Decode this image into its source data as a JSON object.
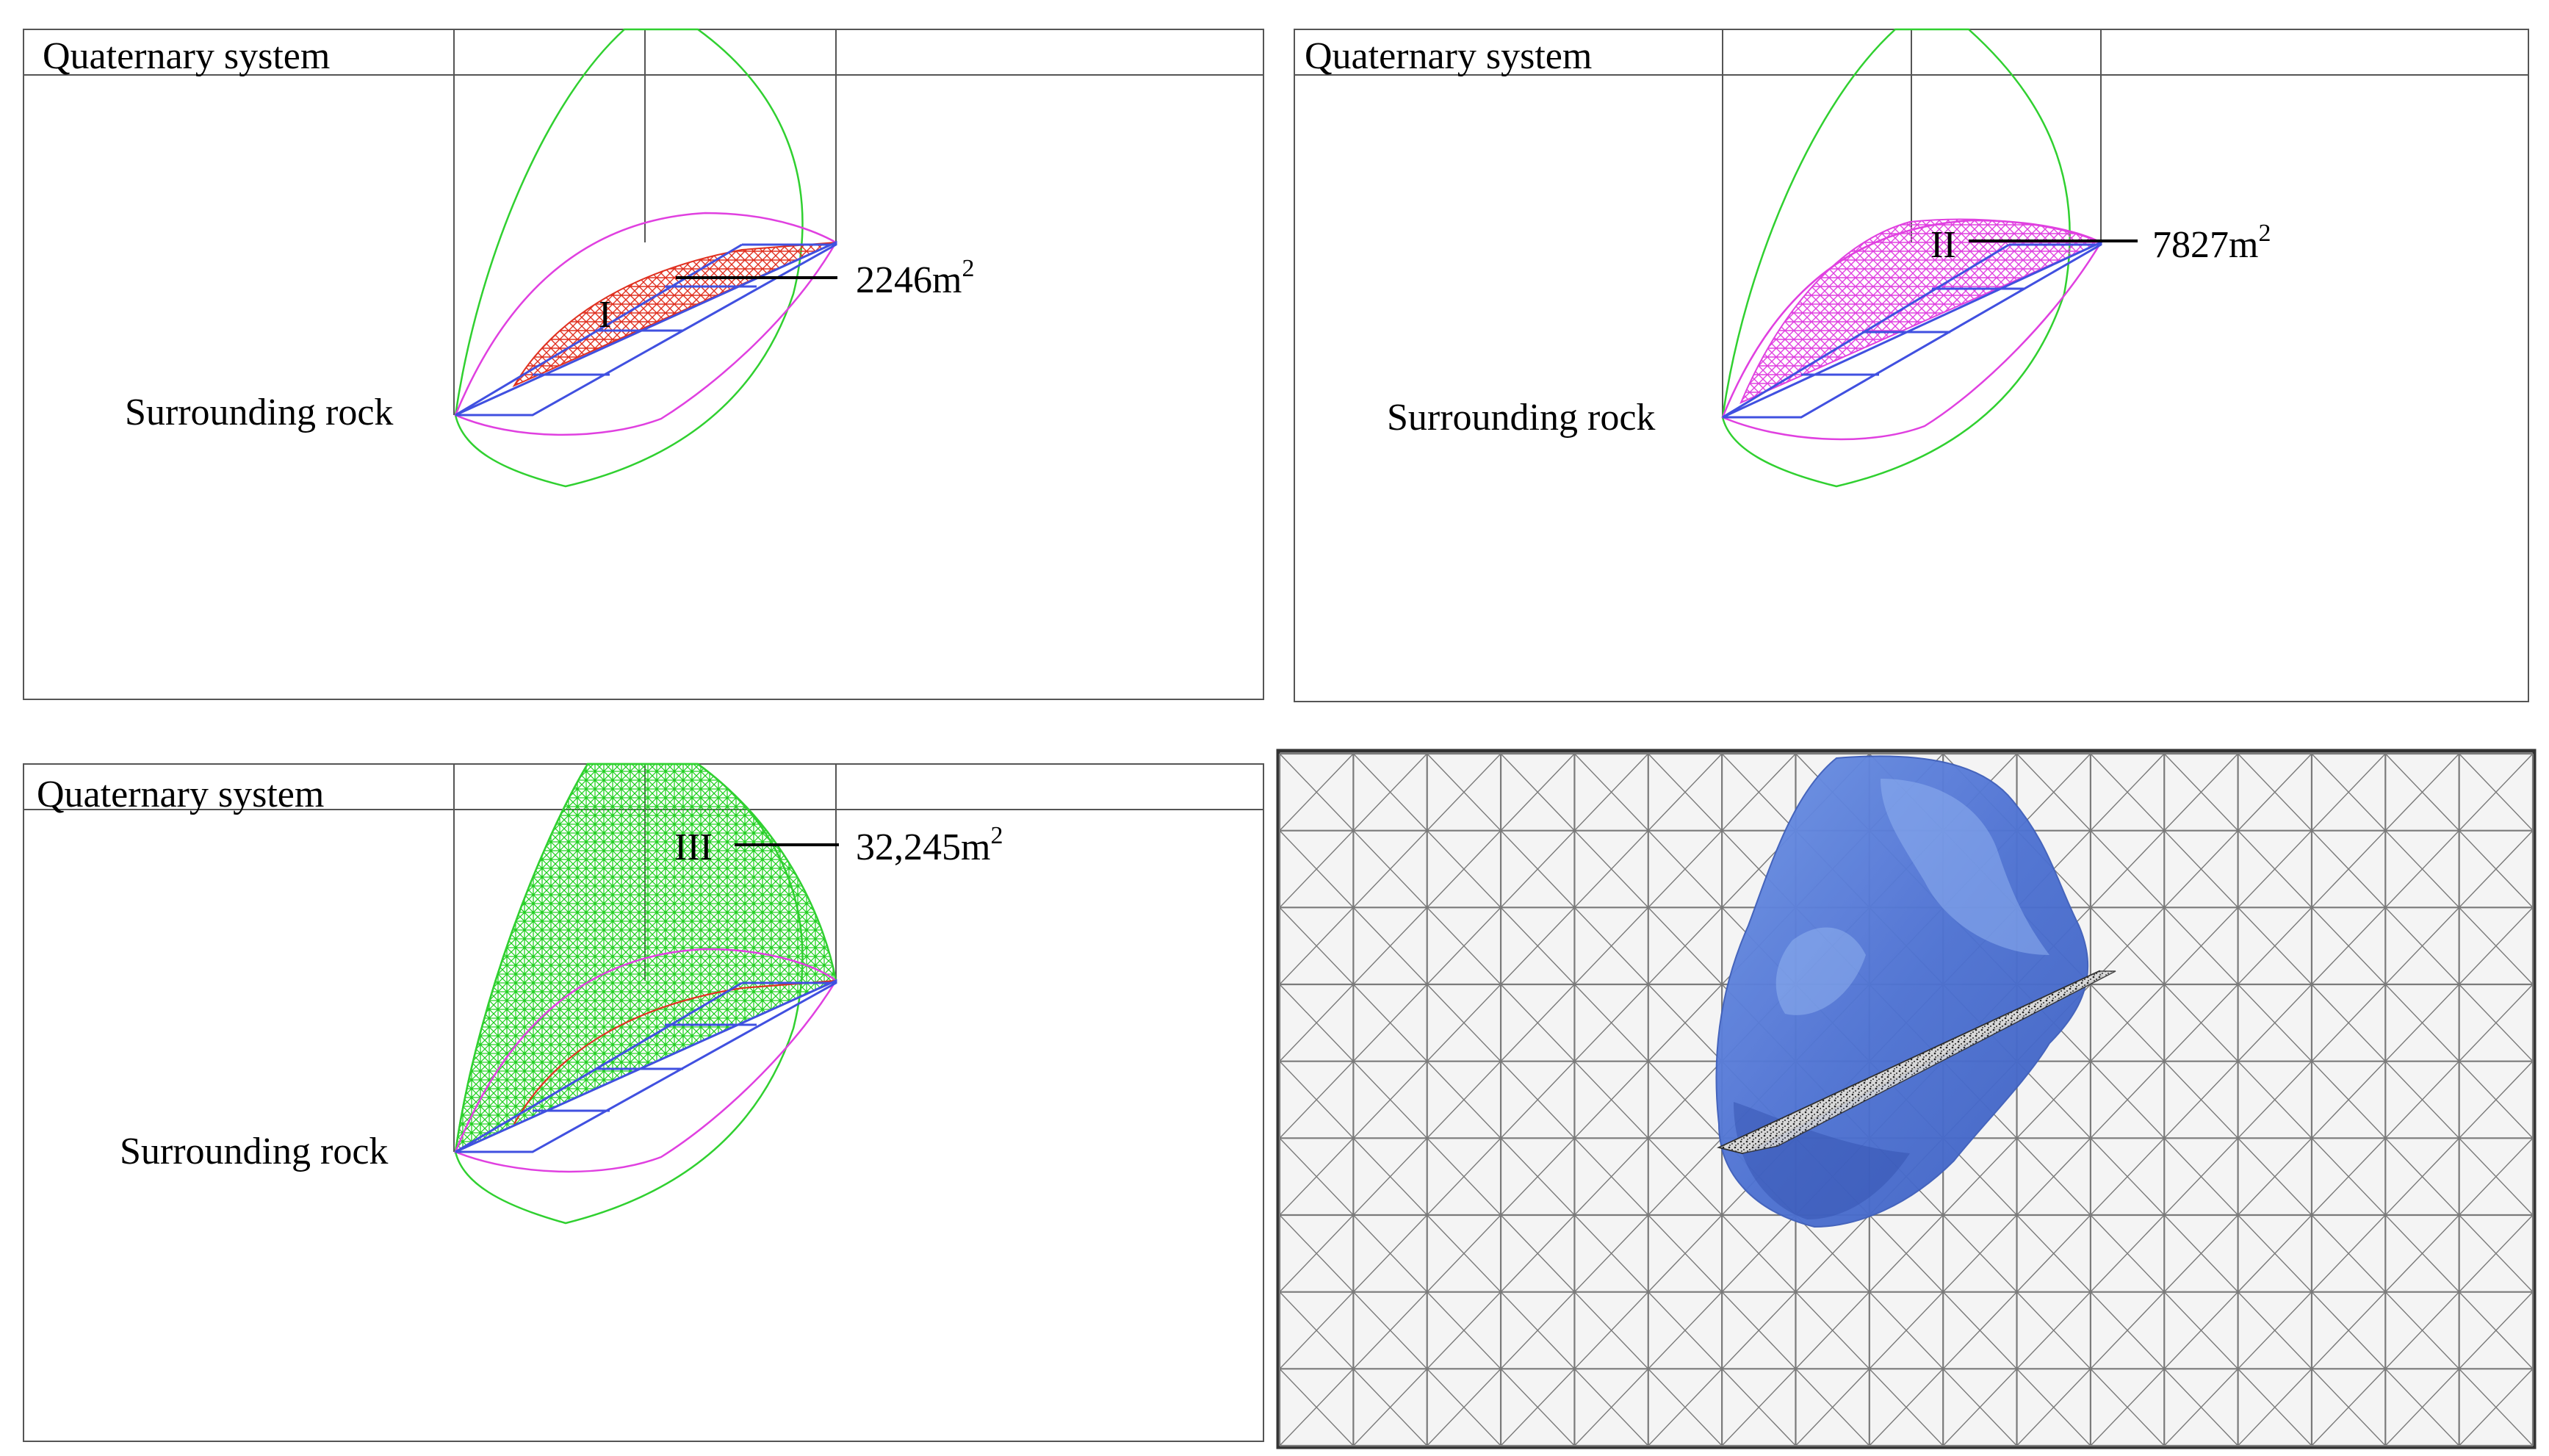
{
  "panels": [
    {
      "id": "I",
      "layer_top": "Quaternary system",
      "layer_bottom": "Surrounding rock",
      "zone_label": "I",
      "area_value": "2246m",
      "area_unit_exp": "2",
      "fill_color": "#e03020"
    },
    {
      "id": "II",
      "layer_top": "Quaternary system",
      "layer_bottom": "Surrounding rock",
      "zone_label": "II",
      "area_value": "7827m",
      "area_unit_exp": "2",
      "fill_color": "#e040e0"
    },
    {
      "id": "III",
      "layer_top": "Quaternary system",
      "layer_bottom": "Surrounding rock",
      "zone_label": "III",
      "area_value": "32,245m",
      "area_unit_exp": "2",
      "fill_color": "#20d020"
    }
  ],
  "colors": {
    "orebody_line": "#4050e0",
    "outer_contour": "#30d030",
    "middle_contour": "#e040e0",
    "inner_contour": "#e03020",
    "model_body": "#5a7fd8",
    "model_body_light": "#8fb0f0",
    "mesh": "#6a6a6a"
  }
}
